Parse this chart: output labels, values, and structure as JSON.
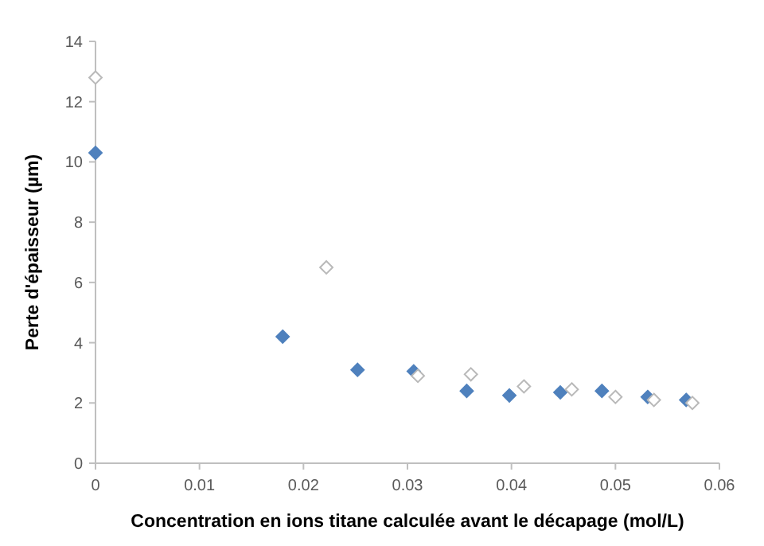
{
  "chart_data": {
    "type": "scatter",
    "xlabel": "Concentration en ions titane calculée avant le décapage (mol/L)",
    "ylabel": "Perte d'épaisseur (µm)",
    "xlim": [
      0,
      0.06
    ],
    "xticks": [
      0,
      0.01,
      0.02,
      0.03,
      0.04,
      0.05,
      0.06
    ],
    "ylim": [
      0,
      14
    ],
    "yticks": [
      0,
      2,
      4,
      6,
      8,
      10,
      12,
      14
    ],
    "grid": false,
    "marker": "diamond",
    "series": [
      {
        "color": "#4f81bd",
        "x": [
          0,
          0.018,
          0.0252,
          0.0306,
          0.0357,
          0.0398,
          0.0447,
          0.0487,
          0.0531,
          0.0568
        ],
        "values": [
          10.3,
          4.2,
          3.1,
          3.05,
          2.4,
          2.25,
          2.35,
          2.4,
          2.2,
          2.1
        ]
      },
      {
        "color": "#ffffff",
        "x": [
          0,
          0.0222,
          0.031,
          0.0361,
          0.0412,
          0.0458,
          0.05,
          0.0537,
          0.0574
        ],
        "values": [
          12.8,
          6.5,
          2.9,
          2.95,
          2.55,
          2.45,
          2.2,
          2.1,
          2.0
        ]
      }
    ]
  }
}
